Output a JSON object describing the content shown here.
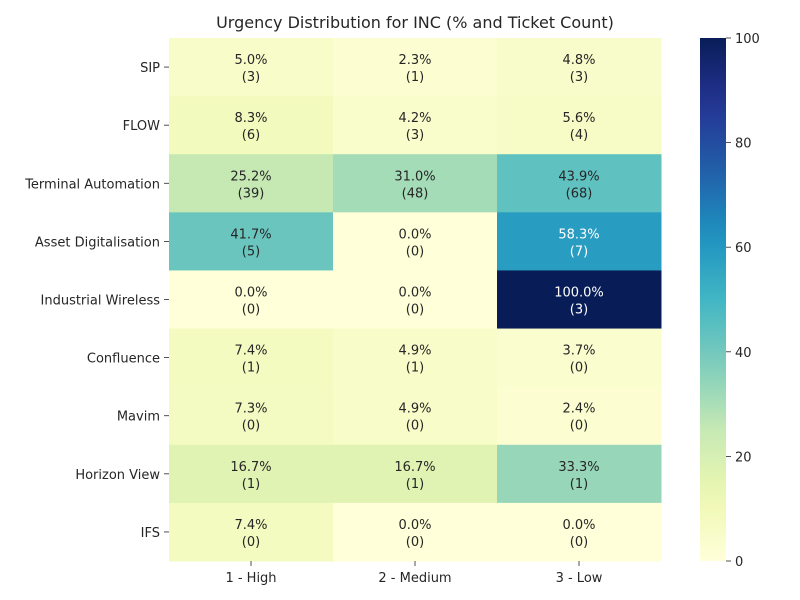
{
  "chart_data": {
    "type": "heatmap",
    "title": "Urgency Distribution for INC (% and Ticket Count)",
    "xlabel": "",
    "ylabel": "",
    "x_categories": [
      "1 - High",
      "2 - Medium",
      "3 - Low"
    ],
    "y_categories": [
      "SIP",
      "FLOW",
      "Terminal Automation",
      "Asset Digitalisation",
      "Industrial Wireless",
      "Confluence",
      "Mavim",
      "Horizon View",
      "IFS"
    ],
    "values": [
      [
        5.0,
        2.3,
        4.8
      ],
      [
        8.3,
        4.2,
        5.6
      ],
      [
        25.2,
        31.0,
        43.9
      ],
      [
        41.7,
        0.0,
        58.3
      ],
      [
        0.0,
        0.0,
        100.0
      ],
      [
        7.4,
        4.9,
        3.7
      ],
      [
        7.3,
        4.9,
        2.4
      ],
      [
        16.7,
        16.7,
        33.3
      ],
      [
        7.4,
        0.0,
        0.0
      ]
    ],
    "counts": [
      [
        3,
        1,
        3
      ],
      [
        6,
        3,
        4
      ],
      [
        39,
        48,
        68
      ],
      [
        5,
        0,
        7
      ],
      [
        0,
        0,
        3
      ],
      [
        1,
        1,
        0
      ],
      [
        0,
        0,
        0
      ],
      [
        1,
        1,
        1
      ],
      [
        0,
        0,
        0
      ]
    ],
    "annotations": [
      [
        "5.0%",
        "2.3%",
        "4.8%"
      ],
      [
        "8.3%",
        "4.2%",
        "5.6%"
      ],
      [
        "25.2%",
        "31.0%",
        "43.9%"
      ],
      [
        "41.7%",
        "0.0%",
        "58.3%"
      ],
      [
        "0.0%",
        "0.0%",
        "100.0%"
      ],
      [
        "7.4%",
        "4.9%",
        "3.7%"
      ],
      [
        "7.3%",
        "4.9%",
        "2.4%"
      ],
      [
        "16.7%",
        "16.7%",
        "33.3%"
      ],
      [
        "7.4%",
        "0.0%",
        "0.0%"
      ]
    ],
    "count_labels": [
      [
        "(3)",
        "(1)",
        "(3)"
      ],
      [
        "(6)",
        "(3)",
        "(4)"
      ],
      [
        "(39)",
        "(48)",
        "(68)"
      ],
      [
        "(5)",
        "(0)",
        "(7)"
      ],
      [
        "(0)",
        "(0)",
        "(3)"
      ],
      [
        "(1)",
        "(1)",
        "(0)"
      ],
      [
        "(0)",
        "(0)",
        "(0)"
      ],
      [
        "(1)",
        "(1)",
        "(1)"
      ],
      [
        "(0)",
        "(0)",
        "(0)"
      ]
    ],
    "colormap": "YlGnBu",
    "vmin": 0,
    "vmax": 100,
    "colorbar_ticks": [
      "0",
      "20",
      "40",
      "60",
      "80",
      "100"
    ],
    "colorbar_values": [
      0,
      20,
      40,
      60,
      80,
      100
    ]
  }
}
